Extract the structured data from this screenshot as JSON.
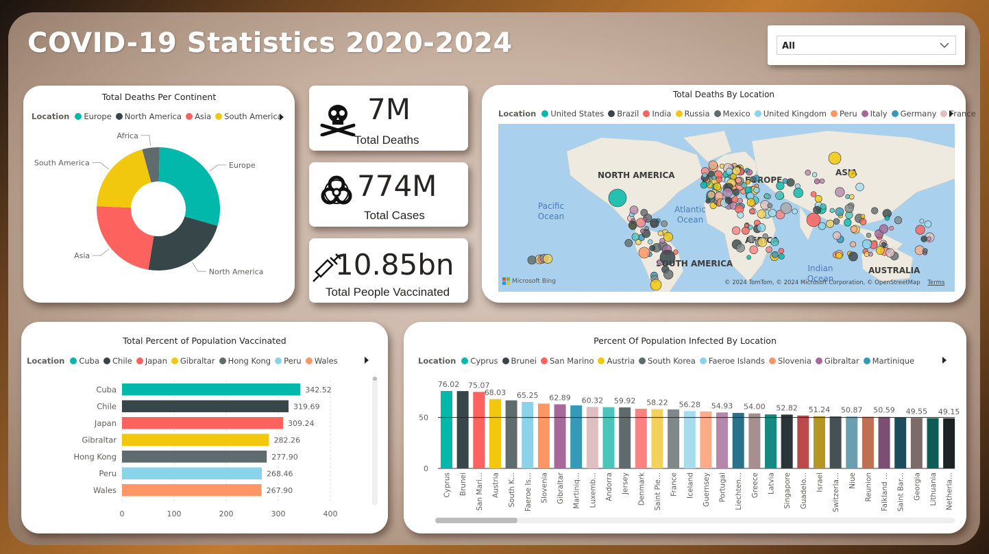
{
  "dashboard": {
    "title": "COVID-19 Statistics 2020-2024"
  },
  "slicer": {
    "value": "All"
  },
  "colors": {
    "teal": "#01B8AA",
    "dark": "#374649",
    "red": "#FD625E",
    "yellow": "#F2C80F",
    "grey": "#5F6B6D",
    "lightblue": "#8AD4EB",
    "orange": "#FE9666",
    "purple": "#A66999",
    "steel": "#3599B8",
    "pink": "#DFBFBF"
  },
  "donut": {
    "title": "Total Deaths Per Continent",
    "legend_title": "Location",
    "legend": [
      "Europe",
      "North America",
      "Asia",
      "South America"
    ],
    "labels": {
      "europe": "Europe",
      "north_america": "North America",
      "asia": "Asia",
      "south_america": "South America",
      "africa": "Africa"
    }
  },
  "kpis": {
    "deaths": {
      "value": "7M",
      "label": "Total Deaths",
      "icon": "skull-crossbones-icon"
    },
    "cases": {
      "value": "774M",
      "label": "Total Cases",
      "icon": "biohazard-icon"
    },
    "vaccinated": {
      "value": "10.85bn",
      "label": "Total People Vaccinated",
      "icon": "syringe-icon"
    }
  },
  "map": {
    "title": "Total Deaths By Location",
    "legend_title": "Location",
    "legend": [
      "United States",
      "Brazil",
      "India",
      "Russia",
      "Mexico",
      "United Kingdom",
      "Peru",
      "Italy",
      "Germany",
      "France"
    ],
    "labels": {
      "north_america": "NORTH AMERICA",
      "south_america": "SOUTH AMERICA",
      "europe": "EUROPE",
      "asia": "ASIA",
      "africa": "AFRICA",
      "australia": "AUSTRALIA",
      "pacific": "Pacific Ocean",
      "atlantic": "Atlantic Ocean",
      "indian": "Indian Ocean"
    },
    "bing": "Microsoft Bing",
    "attribution": "© 2024 TomTom, © 2024 Microsoft Corporation, © OpenStreetMap",
    "terms": "Terms"
  },
  "vacc": {
    "title": "Total Percent of Population Vaccinated",
    "legend_title": "Location",
    "legend": [
      "Cuba",
      "Chile",
      "Japan",
      "Gibraltar",
      "Hong Kong",
      "Peru",
      "Wales"
    ]
  },
  "infected": {
    "title": "Percent Of Population Infected By Location",
    "legend_title": "Location",
    "legend": [
      "Cyprus",
      "Brunei",
      "San Marino",
      "Austria",
      "South Korea",
      "Faeroe Islands",
      "Slovenia",
      "Gibraltar",
      "Martinique"
    ]
  },
  "chart_data": [
    {
      "type": "pie",
      "title": "Total Deaths Per Continent",
      "categories": [
        "Europe",
        "North America",
        "Asia",
        "South America",
        "Africa"
      ],
      "values": [
        29,
        23,
        23,
        20,
        4.5
      ]
    },
    {
      "type": "bar",
      "orientation": "horizontal",
      "title": "Total Percent of Population Vaccinated",
      "categories": [
        "Cuba",
        "Chile",
        "Japan",
        "Gibraltar",
        "Hong Kong",
        "Peru",
        "Wales"
      ],
      "values": [
        342.52,
        319.69,
        309.24,
        282.26,
        277.9,
        268.46,
        267.9
      ],
      "value_labels": [
        "342.52",
        "319.69",
        "309.24",
        "282.26",
        "277.90",
        "268.46",
        "267.90"
      ],
      "xlim": [
        0,
        400
      ],
      "xticks": [
        "0",
        "100",
        "200",
        "300",
        "400"
      ],
      "grid": true
    },
    {
      "type": "bar",
      "title": "Percent Of Population Infected By Location",
      "categories": [
        "Cyprus",
        "Brunei",
        "San Mari...",
        "Austria",
        "South K...",
        "Faeroe Is...",
        "Slovenia",
        "Gibraltar",
        "Martiniq...",
        "Luxemb...",
        "Andorra",
        "Jersey",
        "Denmark",
        "Saint Pie...",
        "France",
        "Iceland",
        "Guernsey",
        "Portugal",
        "Liechten...",
        "Greece",
        "Latvia",
        "Singapore",
        "Guadelo...",
        "Israel",
        "Switzerla...",
        "Niue",
        "Reunion",
        "Falkland ...",
        "Saint Bar...",
        "Georgia",
        "Lithuania",
        "Netherla..."
      ],
      "values": [
        76.02,
        75.9,
        75.07,
        68.03,
        66.8,
        65.25,
        63.6,
        62.89,
        61.9,
        60.32,
        60.1,
        59.92,
        58.6,
        58.22,
        57.9,
        56.28,
        55.9,
        54.93,
        54.5,
        54.0,
        53.0,
        52.82,
        51.9,
        51.24,
        51.0,
        50.87,
        50.7,
        50.59,
        50.1,
        49.55,
        49.3,
        49.15
      ],
      "value_labels": [
        "76.02",
        "",
        "75.07",
        "68.03",
        "",
        "65.25",
        "",
        "62.89",
        "",
        "60.32",
        "",
        "59.92",
        "",
        "58.22",
        "",
        "56.28",
        "",
        "54.93",
        "",
        "54.00",
        "",
        "52.82",
        "",
        "51.24",
        "",
        "50.87",
        "",
        "50.59",
        "",
        "49.55",
        "",
        "49.15"
      ],
      "ylim": [
        0,
        80
      ],
      "yticks": [
        "0",
        "50"
      ],
      "reference_line": 50
    }
  ]
}
